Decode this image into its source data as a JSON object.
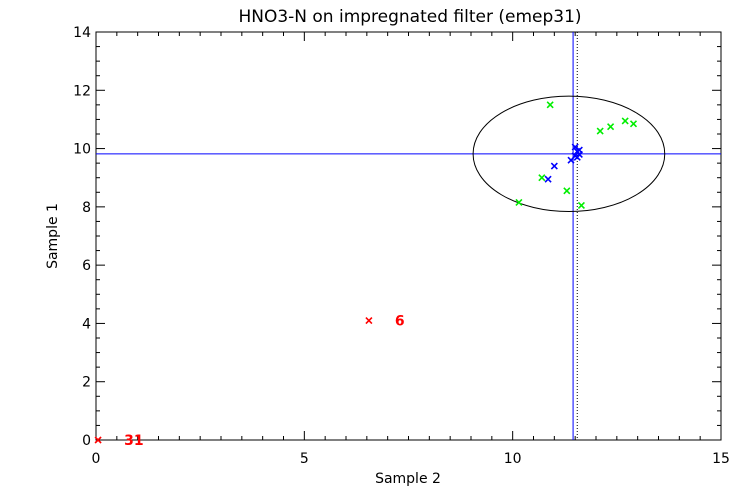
{
  "chart_data": {
    "type": "scatter",
    "title": "HNO3-N on impregnated filter (emep31)",
    "xlabel": "Sample 2",
    "ylabel": "Sample 1",
    "xlim": [
      0,
      15
    ],
    "ylim": [
      0,
      14
    ],
    "xticks": [
      0,
      5,
      10,
      15
    ],
    "xtick_labels": [
      "0",
      "5",
      "10",
      "15"
    ],
    "yticks": [
      0,
      2,
      4,
      6,
      8,
      10,
      12,
      14
    ],
    "ytick_labels": [
      "0",
      "2",
      "4",
      "6",
      "8",
      "10",
      "12",
      "14"
    ],
    "grid": false,
    "reference_lines": {
      "horizontal_y": 9.82,
      "vertical_x": 11.45,
      "vertical_dotted_x": 11.55
    },
    "ellipse": {
      "cx": 11.35,
      "cy": 9.82,
      "rx": 2.3,
      "ry": 1.98
    },
    "series": [
      {
        "color": "#0000ff",
        "points": [
          {
            "x": 10.85,
            "y": 8.95
          },
          {
            "x": 11.0,
            "y": 9.4
          },
          {
            "x": 11.4,
            "y": 9.6
          },
          {
            "x": 11.5,
            "y": 9.75
          },
          {
            "x": 11.55,
            "y": 9.7
          },
          {
            "x": 11.6,
            "y": 9.8
          },
          {
            "x": 11.55,
            "y": 9.9
          },
          {
            "x": 11.6,
            "y": 9.95
          },
          {
            "x": 11.5,
            "y": 10.05
          }
        ]
      },
      {
        "color": "#00ee00",
        "points": [
          {
            "x": 10.15,
            "y": 8.15
          },
          {
            "x": 10.7,
            "y": 9.0
          },
          {
            "x": 10.9,
            "y": 11.5
          },
          {
            "x": 11.3,
            "y": 8.55
          },
          {
            "x": 11.65,
            "y": 8.05
          },
          {
            "x": 12.1,
            "y": 10.6
          },
          {
            "x": 12.35,
            "y": 10.75
          },
          {
            "x": 12.7,
            "y": 10.95
          },
          {
            "x": 12.9,
            "y": 10.85
          }
        ]
      },
      {
        "color": "#ff0000",
        "points": [
          {
            "x": 6.55,
            "y": 4.1,
            "label": "6"
          },
          {
            "x": 0.05,
            "y": 0.0,
            "label": "31"
          }
        ]
      }
    ]
  }
}
